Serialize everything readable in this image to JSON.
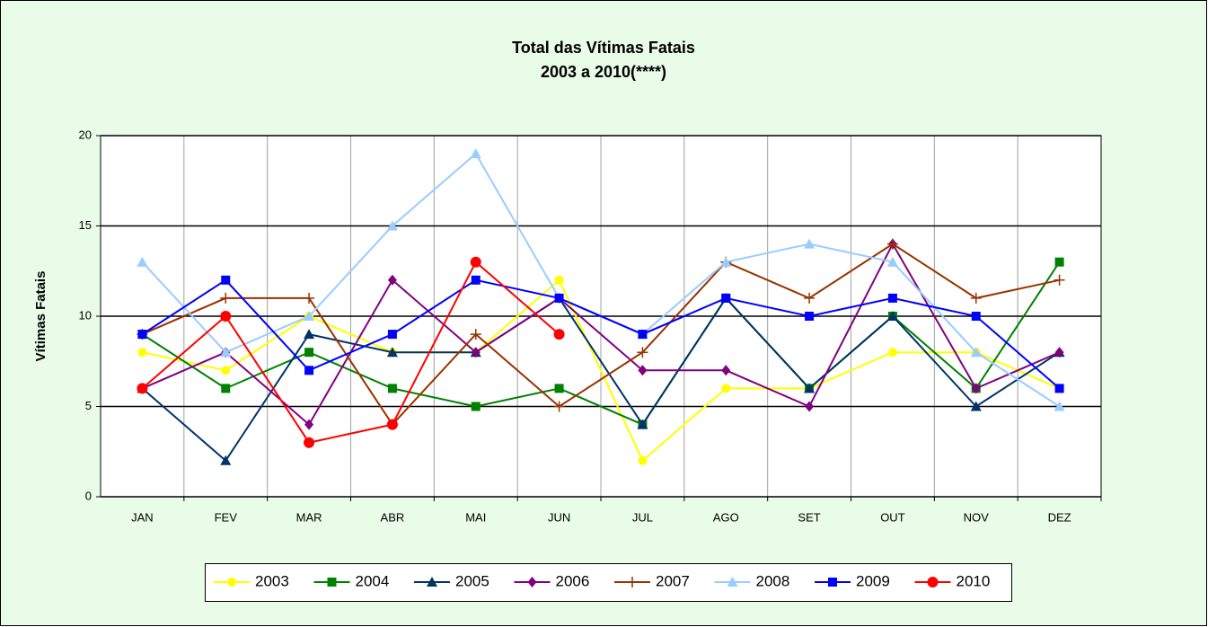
{
  "chart_data": {
    "type": "line",
    "title": "Total das Vítimas Fatais",
    "subtitle": "2003 a 2010(****)",
    "y_label": "Vítimas Fatais",
    "categories": [
      "JAN",
      "FEV",
      "MAR",
      "ABR",
      "MAI",
      "JUN",
      "JUL",
      "AGO",
      "SET",
      "OUT",
      "NOV",
      "DEZ"
    ],
    "ylim": [
      0,
      20
    ],
    "yticks": [
      0,
      5,
      10,
      15,
      20
    ],
    "grid": true,
    "legend": "bottom",
    "series": [
      {
        "name": "2003",
        "color": "#ffff00",
        "marker": "circle",
        "values": [
          8,
          7,
          10,
          8,
          8,
          12,
          2,
          6,
          6,
          8,
          8,
          6
        ]
      },
      {
        "name": "2004",
        "color": "#008000",
        "marker": "square",
        "values": [
          9,
          6,
          8,
          6,
          5,
          6,
          4,
          11,
          6,
          10,
          6,
          13
        ]
      },
      {
        "name": "2005",
        "color": "#003366",
        "marker": "triangle",
        "values": [
          6,
          2,
          9,
          8,
          8,
          11,
          4,
          11,
          6,
          10,
          5,
          8
        ]
      },
      {
        "name": "2006",
        "color": "#800080",
        "marker": "diamond",
        "values": [
          6,
          8,
          4,
          12,
          8,
          11,
          7,
          7,
          5,
          14,
          6,
          8
        ]
      },
      {
        "name": "2007",
        "color": "#993300",
        "marker": "plus",
        "values": [
          9,
          11,
          11,
          4,
          9,
          5,
          8,
          13,
          11,
          14,
          11,
          12
        ]
      },
      {
        "name": "2008",
        "color": "#99ccff",
        "marker": "triangle",
        "values": [
          13,
          8,
          10,
          15,
          19,
          11,
          9,
          13,
          14,
          13,
          8,
          5
        ]
      },
      {
        "name": "2009",
        "color": "#0000ff",
        "marker": "square",
        "values": [
          9,
          12,
          7,
          9,
          12,
          11,
          9,
          11,
          10,
          11,
          10,
          6
        ]
      },
      {
        "name": "2010",
        "color": "#ff0000",
        "marker": "bigcircle",
        "values": [
          6,
          10,
          3,
          4,
          13,
          9,
          null,
          null,
          null,
          null,
          null,
          null
        ]
      }
    ]
  }
}
